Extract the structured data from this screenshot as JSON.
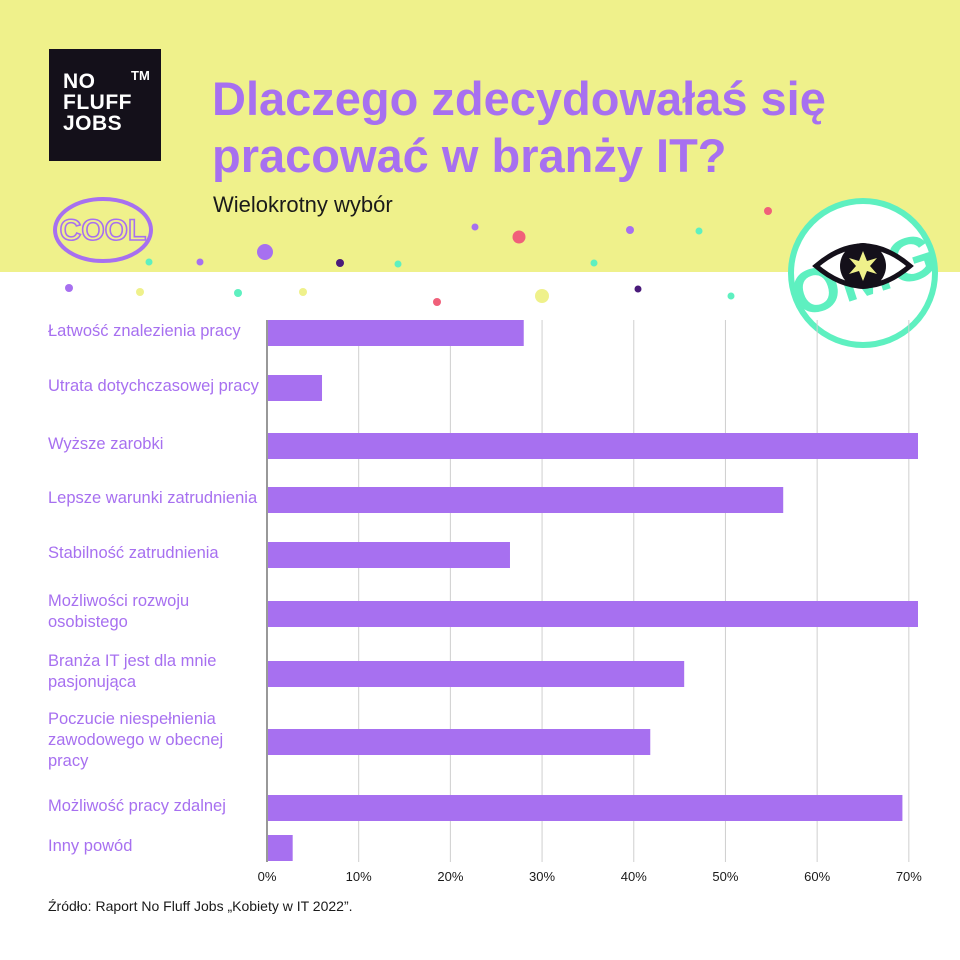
{
  "brand": {
    "logo_text": "NO\nFLUFF\nJOBS",
    "logo_tm": "TM",
    "badge_left": "COOL",
    "badge_right": "OMG"
  },
  "header": {
    "title": "Dlaczego zdecydowałaś się pracować w branży IT?",
    "subtitle": "Wielokrotny wybór"
  },
  "footer": {
    "source": "Źródło: Raport No Fluff Jobs „Kobiety w IT 2022”."
  },
  "colors": {
    "bar": "#a770f0",
    "band": "#eff18b",
    "label": "#a770f0",
    "grid": "#cfcfcf",
    "badge_right": "#5ef0c0"
  },
  "chart_data": {
    "type": "bar",
    "orientation": "horizontal",
    "categories": [
      "Łatwość znalezienia pracy",
      "Utrata dotychczasowej pracy",
      "Wyższe zarobki",
      "Lepsze warunki zatrudnienia",
      "Stabilność zatrudnienia",
      "Możliwości rozwoju osobistego",
      "Branża IT jest dla mnie pasjonująca",
      "Poczucie niespełnienia zawodowego w obecnej pracy",
      "Możliwość pracy zdalnej",
      "Inny powód"
    ],
    "values": [
      28,
      6,
      71,
      56.3,
      26.5,
      71,
      45.5,
      41.8,
      69.3,
      2.8
    ],
    "xlim": [
      0,
      71
    ],
    "xticks": [
      0,
      10,
      20,
      30,
      40,
      50,
      60,
      70
    ],
    "xtick_labels": [
      "0%",
      "10%",
      "20%",
      "30%",
      "40%",
      "50%",
      "60%",
      "70%"
    ],
    "grid": true,
    "title": "Dlaczego zdecydowałaś się pracować w branży IT?",
    "subtitle": "Wielokrotny wybór",
    "xlabel": "",
    "ylabel": ""
  }
}
